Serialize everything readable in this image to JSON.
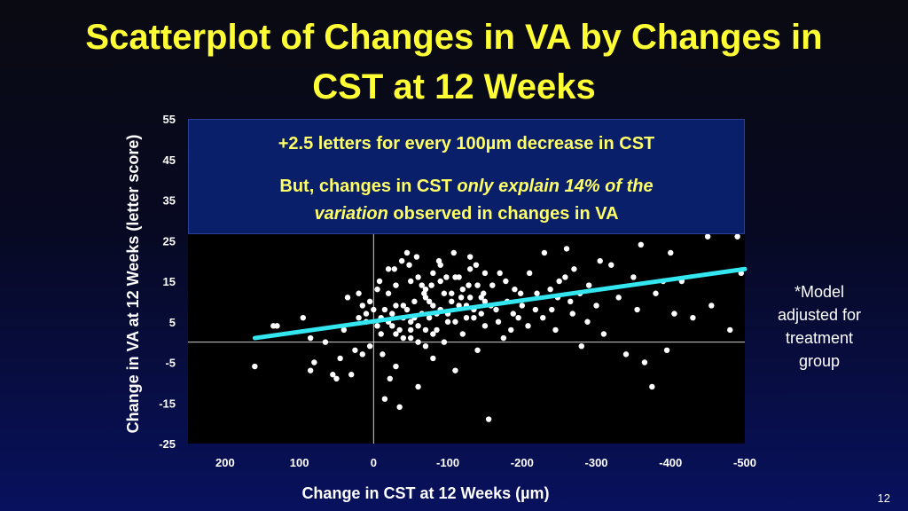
{
  "title_lines": [
    "Scatterplot of Changes in VA by Changes in",
    "CST at 12 Weeks"
  ],
  "note_lines": [
    "*Model",
    "adjusted for",
    "treatment",
    "group"
  ],
  "page_number": "12",
  "colors": {
    "title": "#ffff33",
    "annotation_text": "#ffff66",
    "annotation_bg": "#0a1f6a",
    "plot_bg": "#000000",
    "points": "#ffffff",
    "fit_line": "#33e6f0"
  },
  "annotation": {
    "line1": "+2.5 letters for every 100µm decrease in CST",
    "line2_a": "But, changes in CST ",
    "line2_b": "only explain 14% of the",
    "line3_a": "variation",
    "line3_b": " observed in changes in VA"
  },
  "chart_data": {
    "type": "scatter",
    "xlabel": "Change in CST at 12 Weeks (µm)",
    "ylabel": "Change in VA at 12 Weeks (letter score)",
    "xlim": [
      250,
      -500
    ],
    "ylim": [
      -25,
      55
    ],
    "x_ticks": [
      200,
      100,
      0,
      -100,
      -200,
      -300,
      -400,
      -500
    ],
    "x_tick_labels": [
      "200",
      "100",
      "0",
      "-100",
      "-200",
      "-300",
      "-400",
      "-500"
    ],
    "y_ticks": [
      55,
      45,
      35,
      25,
      15,
      5,
      -5,
      -15,
      -25
    ],
    "y_tick_labels": [
      "55",
      "45",
      "35",
      "25",
      "15",
      "5",
      "-5",
      "-15",
      "-25"
    ],
    "grid": false,
    "legend": "none",
    "fit_line": {
      "x": [
        160,
        -500
      ],
      "y": [
        1.0,
        18.0
      ]
    },
    "points": [
      [
        160,
        -6
      ],
      [
        135,
        4
      ],
      [
        130,
        4
      ],
      [
        95,
        6
      ],
      [
        85,
        -7
      ],
      [
        80,
        -5
      ],
      [
        85,
        1
      ],
      [
        65,
        0
      ],
      [
        55,
        -8
      ],
      [
        50,
        -9
      ],
      [
        45,
        -4
      ],
      [
        40,
        3
      ],
      [
        35,
        11
      ],
      [
        30,
        -8
      ],
      [
        25,
        -2
      ],
      [
        20,
        12
      ],
      [
        15,
        -3
      ],
      [
        10,
        5
      ],
      [
        5,
        -1
      ],
      [
        0,
        8
      ],
      [
        -5,
        13
      ],
      [
        -10,
        2
      ],
      [
        -15,
        -14
      ],
      [
        -20,
        18
      ],
      [
        -25,
        4
      ],
      [
        -30,
        -6
      ],
      [
        -35,
        -16
      ],
      [
        -40,
        9
      ],
      [
        -45,
        22
      ],
      [
        -50,
        1
      ],
      [
        -55,
        6
      ],
      [
        -60,
        -11
      ],
      [
        -65,
        14
      ],
      [
        -70,
        3
      ],
      [
        -75,
        10
      ],
      [
        -80,
        -4
      ],
      [
        -85,
        7
      ],
      [
        -90,
        19
      ],
      [
        -95,
        0
      ],
      [
        -100,
        5
      ],
      [
        -105,
        12
      ],
      [
        -110,
        -7
      ],
      [
        -115,
        16
      ],
      [
        -120,
        2
      ],
      [
        -125,
        9
      ],
      [
        -130,
        21
      ],
      [
        -135,
        6
      ],
      [
        -140,
        -2
      ],
      [
        -145,
        11
      ],
      [
        -150,
        4
      ],
      [
        -155,
        -19
      ],
      [
        -160,
        14
      ],
      [
        -165,
        8
      ],
      [
        -170,
        17
      ],
      [
        -175,
        1
      ],
      [
        -180,
        10
      ],
      [
        -185,
        3
      ],
      [
        -190,
        13
      ],
      [
        -195,
        6
      ],
      [
        -200,
        9
      ],
      [
        -210,
        17
      ],
      [
        -220,
        12
      ],
      [
        -230,
        22
      ],
      [
        -240,
        8
      ],
      [
        -245,
        3
      ],
      [
        -250,
        15
      ],
      [
        -260,
        23
      ],
      [
        -265,
        10
      ],
      [
        -270,
        18
      ],
      [
        -280,
        -1
      ],
      [
        -290,
        14
      ],
      [
        -300,
        9
      ],
      [
        -305,
        20
      ],
      [
        -310,
        2
      ],
      [
        -320,
        19
      ],
      [
        -330,
        11
      ],
      [
        -340,
        -3
      ],
      [
        -350,
        16
      ],
      [
        -355,
        8
      ],
      [
        -360,
        24
      ],
      [
        -365,
        -5
      ],
      [
        -375,
        -11
      ],
      [
        -380,
        12
      ],
      [
        -390,
        15
      ],
      [
        -395,
        -2
      ],
      [
        -400,
        22
      ],
      [
        -405,
        7
      ],
      [
        -415,
        15
      ],
      [
        -430,
        6
      ],
      [
        -450,
        26
      ],
      [
        -455,
        9
      ],
      [
        -480,
        3
      ],
      [
        -490,
        26
      ],
      [
        -495,
        17
      ],
      [
        -5,
        4
      ],
      [
        -10,
        6
      ],
      [
        -15,
        8
      ],
      [
        -20,
        5
      ],
      [
        -25,
        7
      ],
      [
        -30,
        9
      ],
      [
        -35,
        3
      ],
      [
        -40,
        6
      ],
      [
        -45,
        8
      ],
      [
        -50,
        5
      ],
      [
        -55,
        10
      ],
      [
        -60,
        4
      ],
      [
        -65,
        7
      ],
      [
        -70,
        11
      ],
      [
        -75,
        6
      ],
      [
        -80,
        9
      ],
      [
        -85,
        3
      ],
      [
        -90,
        8
      ],
      [
        -95,
        12
      ],
      [
        -100,
        7
      ],
      [
        -105,
        10
      ],
      [
        -110,
        5
      ],
      [
        -115,
        9
      ],
      [
        -120,
        13
      ],
      [
        -125,
        6
      ],
      [
        -130,
        11
      ],
      [
        -135,
        8
      ],
      [
        -140,
        14
      ],
      [
        -145,
        7
      ],
      [
        -150,
        10
      ],
      [
        -30,
        2
      ],
      [
        -40,
        1
      ],
      [
        -50,
        3
      ],
      [
        -60,
        0
      ],
      [
        -70,
        -1
      ],
      [
        -80,
        2
      ],
      [
        -20,
        12
      ],
      [
        -30,
        14
      ],
      [
        -50,
        15
      ],
      [
        -60,
        16
      ],
      [
        -70,
        13
      ],
      [
        -80,
        17
      ],
      [
        -90,
        15
      ],
      [
        -110,
        16
      ],
      [
        -130,
        18
      ],
      [
        -150,
        17
      ],
      [
        10,
        7
      ],
      [
        5,
        10
      ],
      [
        15,
        9
      ],
      [
        20,
        6
      ],
      [
        -8,
        15
      ],
      [
        -12,
        -3
      ],
      [
        -22,
        -9
      ],
      [
        -28,
        18
      ],
      [
        -38,
        20
      ],
      [
        -48,
        19
      ],
      [
        -58,
        21
      ],
      [
        -68,
        12
      ],
      [
        -78,
        14
      ],
      [
        -88,
        20
      ],
      [
        -98,
        16
      ],
      [
        -108,
        22
      ],
      [
        -118,
        11
      ],
      [
        -128,
        14
      ],
      [
        -138,
        19
      ],
      [
        -148,
        12
      ],
      [
        -158,
        9
      ],
      [
        -168,
        5
      ],
      [
        -178,
        15
      ],
      [
        -188,
        7
      ],
      [
        -198,
        12
      ],
      [
        -208,
        4
      ],
      [
        -218,
        8
      ],
      [
        -228,
        6
      ],
      [
        -238,
        13
      ],
      [
        -248,
        11
      ],
      [
        -258,
        16
      ],
      [
        -268,
        7
      ],
      [
        -278,
        12
      ],
      [
        -288,
        5
      ]
    ]
  }
}
